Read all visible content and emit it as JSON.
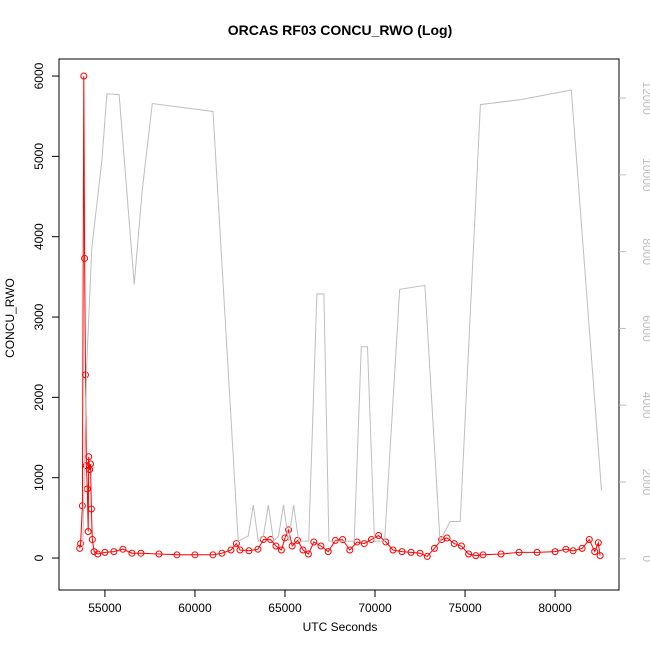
{
  "chart_data": {
    "type": "line",
    "title": "ORCAS RF03 CONCU_RWO (Log)",
    "x_label": "UTC Seconds",
    "y_label": "CONCU_RWO",
    "xlim": [
      52450,
      83550
    ],
    "xticks": [
      55000,
      60000,
      65000,
      70000,
      75000,
      80000
    ],
    "ylim": [
      -398,
      6212
    ],
    "yticks": [
      0,
      1000,
      2000,
      3000,
      4000,
      5000,
      6000
    ],
    "y2lim": [
      -814,
      13018
    ],
    "y2ticks": [
      0,
      2000,
      4000,
      6000,
      8000,
      10000,
      12000
    ],
    "y2tick_color": "#bebebe",
    "series": [
      {
        "color": "#ff0000",
        "markers": true,
        "x": [
          53600,
          53650,
          53750,
          53830,
          53870,
          53920,
          53970,
          54020,
          54070,
          54100,
          54150,
          54200,
          54250,
          54300,
          54400,
          54600,
          55000,
          55500,
          56000,
          56500,
          57000,
          58000,
          59000,
          60000,
          61000,
          61500,
          62000,
          62300,
          62500,
          63000,
          63500,
          63800,
          64200,
          64500,
          64800,
          65000,
          65200,
          65400,
          65700,
          66000,
          66300,
          66600,
          67000,
          67400,
          67800,
          68200,
          68600,
          69000,
          69400,
          69800,
          70200,
          70600,
          71000,
          71500,
          72000,
          72500,
          72900,
          73300,
          73700,
          74000,
          74400,
          74800,
          75200,
          75600,
          76000,
          77000,
          78000,
          79000,
          80000,
          80600,
          81000,
          81500,
          81900,
          82200,
          82400,
          82500
        ],
        "values": [
          120,
          180,
          650,
          6000,
          3730,
          2280,
          1150,
          860,
          330,
          1260,
          1100,
          1170,
          610,
          230,
          80,
          50,
          70,
          80,
          110,
          60,
          60,
          50,
          40,
          40,
          40,
          60,
          100,
          180,
          100,
          90,
          110,
          230,
          230,
          150,
          100,
          250,
          350,
          150,
          220,
          100,
          50,
          200,
          150,
          80,
          220,
          230,
          100,
          200,
          180,
          230,
          280,
          200,
          100,
          80,
          70,
          60,
          20,
          120,
          230,
          250,
          180,
          150,
          50,
          30,
          40,
          50,
          70,
          70,
          80,
          110,
          90,
          120,
          230,
          80,
          190,
          30
        ]
      },
      {
        "color": "#bebebe",
        "axis": "y2",
        "markers": false,
        "x": [
          53767,
          53990,
          54271,
          54832,
          55112,
          55785,
          56626,
          57074,
          57634,
          61000,
          62400,
          62960,
          63240,
          63520,
          63800,
          64080,
          64360,
          64640,
          64920,
          65200,
          65480,
          65760,
          66320,
          66770,
          67160,
          67440,
          68000,
          68845,
          69240,
          69580,
          69970,
          70530,
          71370,
          72770,
          73610,
          74170,
          74730,
          75852,
          78094,
          80900,
          82580
        ],
        "values": [
          280,
          5040,
          8090,
          10380,
          12110,
          12090,
          7150,
          9620,
          11860,
          11650,
          460,
          590,
          1400,
          460,
          590,
          1400,
          460,
          590,
          1400,
          460,
          1400,
          460,
          460,
          6900,
          6900,
          460,
          460,
          460,
          5520,
          5520,
          460,
          460,
          7020,
          7120,
          460,
          970,
          970,
          11830,
          11960,
          12210,
          1780
        ]
      }
    ]
  }
}
